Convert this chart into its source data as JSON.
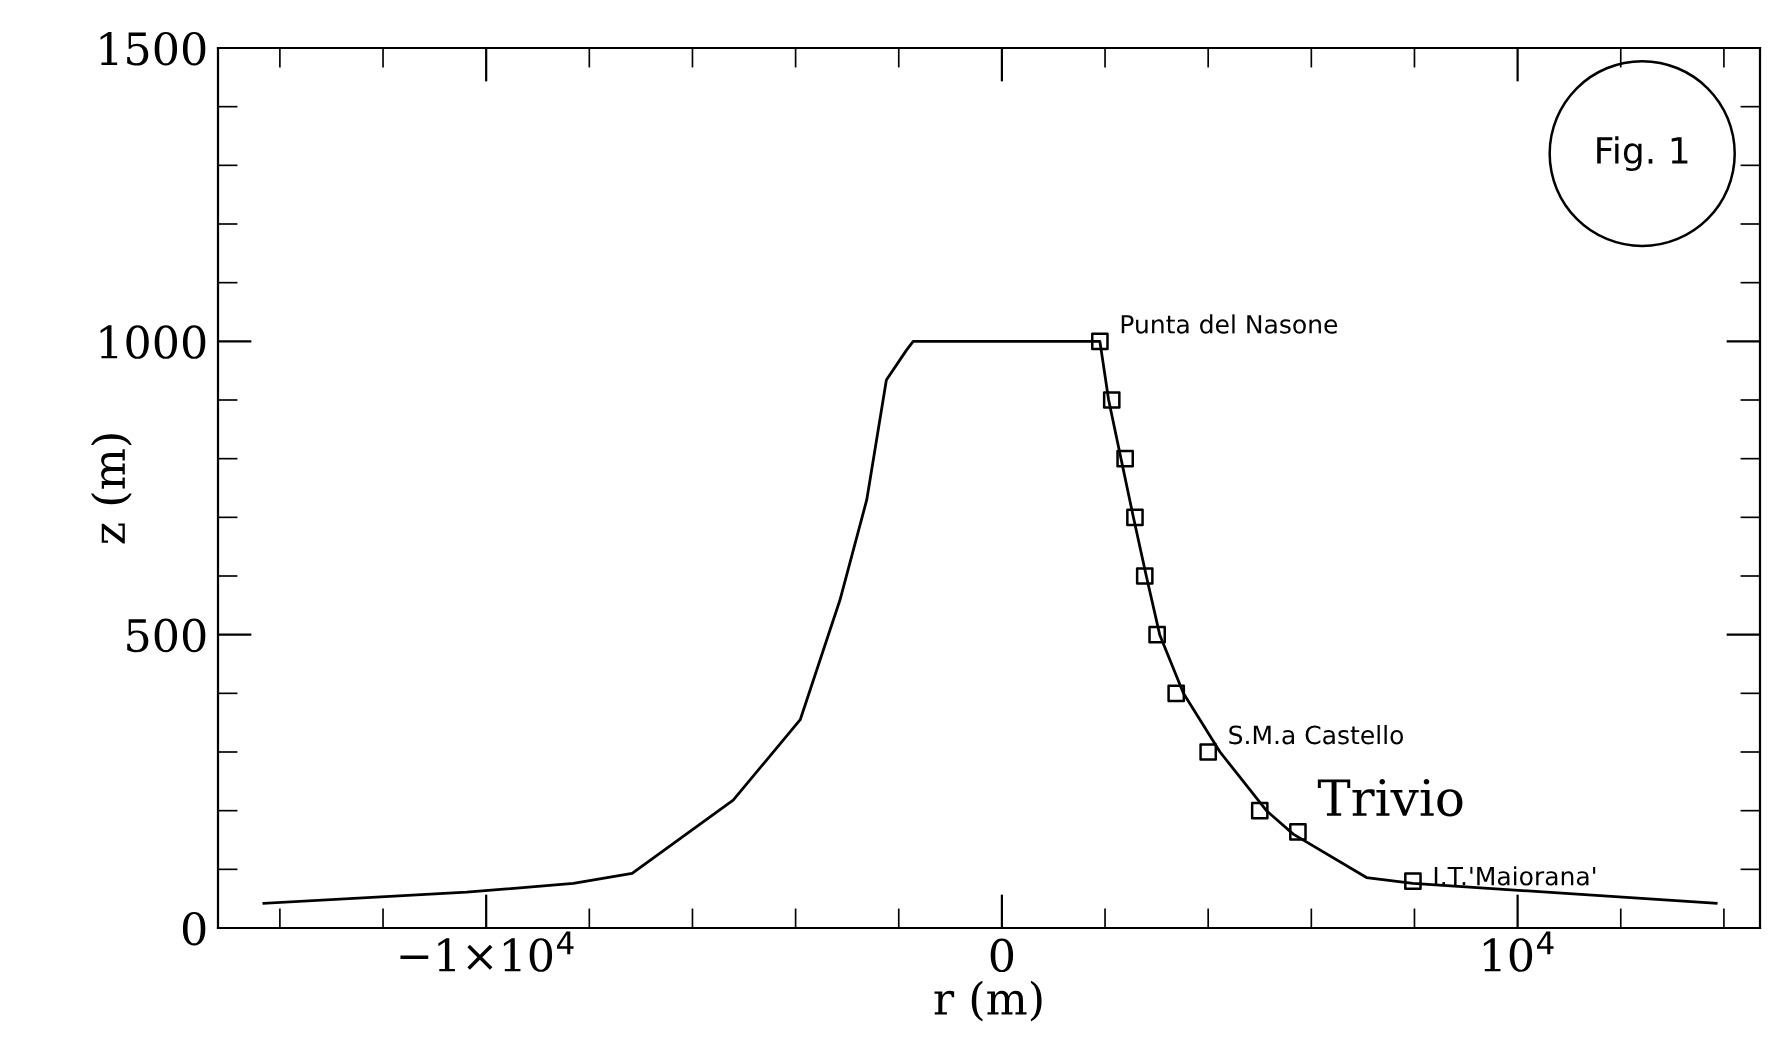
{
  "chart_data": {
    "type": "line",
    "xlabel": "r (m)",
    "ylabel": "z (m)",
    "xlim": [
      -15200,
      14700
    ],
    "ylim": [
      0,
      1500
    ],
    "xticks": [
      {
        "value": -14000,
        "label": null
      },
      {
        "value": -12000,
        "label": null
      },
      {
        "value": -10000,
        "label": "−1×10$^{4}$"
      },
      {
        "value": -8000,
        "label": null
      },
      {
        "value": -6000,
        "label": null
      },
      {
        "value": -4000,
        "label": null
      },
      {
        "value": -2000,
        "label": null
      },
      0,
      {
        "value": 2000,
        "label": null
      },
      {
        "value": 4000,
        "label": null
      },
      {
        "value": 6000,
        "label": null
      },
      {
        "value": 8000,
        "label": null
      },
      {
        "value": 10000,
        "label": "10$^{4}$"
      },
      {
        "value": 12000,
        "label": null
      },
      {
        "value": 14000,
        "label": null
      }
    ],
    "yticks": [
      0,
      {
        "value": 100,
        "label": null
      },
      {
        "value": 200,
        "label": null
      },
      {
        "value": 300,
        "label": null
      },
      {
        "value": 400,
        "label": null
      },
      500,
      {
        "value": 600,
        "label": null
      },
      {
        "value": 700,
        "label": null
      },
      {
        "value": 800,
        "label": null
      },
      {
        "value": 900,
        "label": null
      },
      1000,
      {
        "value": 1100,
        "label": null
      },
      {
        "value": 1200,
        "label": null
      },
      {
        "value": 1300,
        "label": null
      },
      {
        "value": 1400,
        "label": null
      },
      1500
    ],
    "grid": false,
    "legend": false,
    "series": [
      {
        "color": "#000000",
        "marker": "none",
        "line_style": "solid",
        "x": [
          -14310,
          -10380,
          -8310,
          -7170,
          -5210,
          -3910,
          -3140,
          -2620,
          -2240,
          -1850,
          -1720,
          1900,
          2070,
          2310,
          2550,
          2800,
          3060,
          3520,
          4230,
          5130,
          5650,
          7070,
          7970,
          13850
        ],
        "values": [
          42,
          61,
          76,
          93,
          218,
          355,
          559,
          730,
          934,
          985,
          1000,
          1000,
          900,
          800,
          700,
          600,
          500,
          400,
          300,
          200,
          160,
          86,
          76,
          42
        ]
      },
      {
        "type": "scatter",
        "color": "#000000",
        "marker": "square",
        "x": [
          1900,
          2130,
          2390,
          2580,
          2770,
          3010,
          3380,
          4000,
          5000,
          5740,
          7970
        ],
        "values": [
          1000,
          900,
          800,
          700,
          600,
          500,
          400,
          300,
          200,
          164,
          80
        ]
      }
    ],
    "annotations": [
      {
        "text": "Punta del Nasone",
        "x": 1900,
        "y": 1000
      },
      {
        "text": "S.M.a Castello",
        "x": 4000,
        "y": 300
      },
      {
        "text": "Trivio",
        "x": 5740,
        "y": 164
      },
      {
        "text": "I.T.'Maiorana'",
        "x": 7970,
        "y": 80
      },
      "Fig. 1"
    ]
  }
}
